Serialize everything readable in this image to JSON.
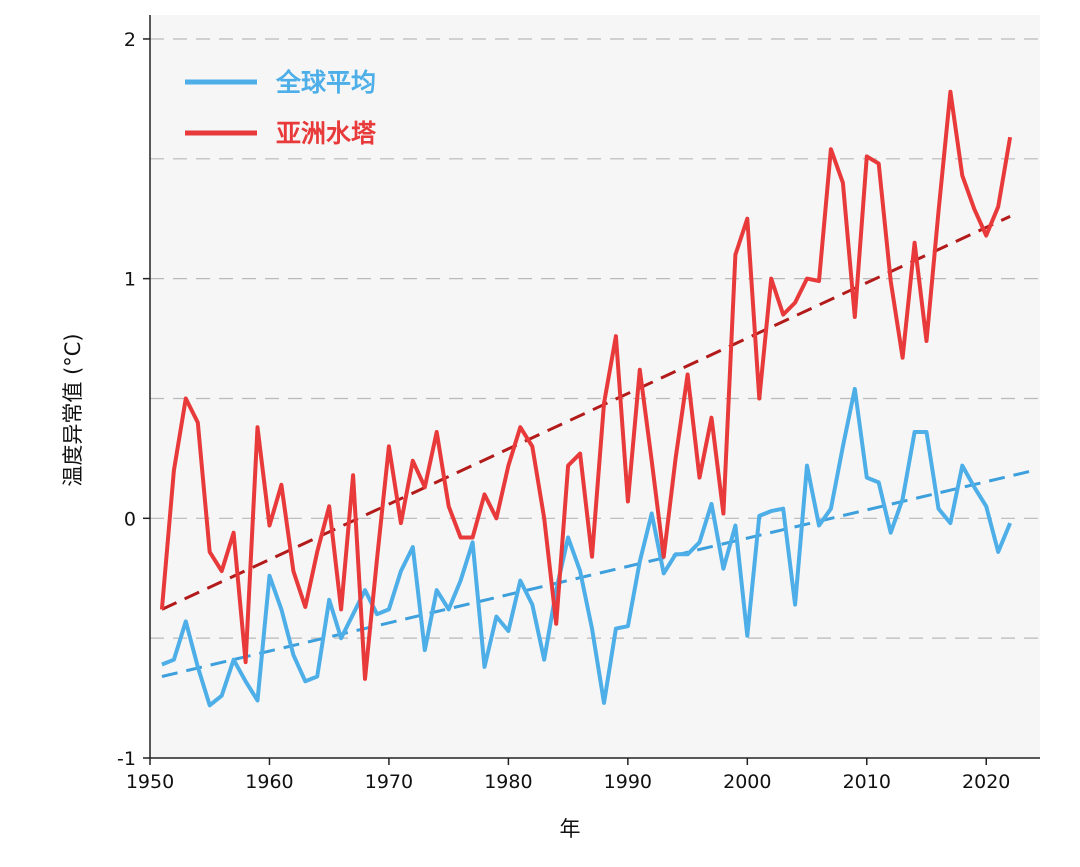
{
  "chart_data": {
    "type": "line",
    "xlabel": "年",
    "ylabel": "温度异常值 (°C)",
    "xlim": [
      1950,
      2024.5
    ],
    "ylim": [
      -1,
      2.1
    ],
    "x_ticks": [
      1950,
      1960,
      1970,
      1980,
      1990,
      2000,
      2010,
      2020
    ],
    "y_ticks": [
      -1,
      0,
      1,
      2
    ],
    "grid": "horizontal dashed, every 0.5",
    "legend_position": "top-left",
    "series": [
      {
        "name": "全球平均",
        "color": "#4daee8",
        "x": [
          1951,
          1952,
          1953,
          1954,
          1955,
          1956,
          1957,
          1958,
          1959,
          1960,
          1961,
          1962,
          1963,
          1964,
          1965,
          1966,
          1967,
          1968,
          1969,
          1970,
          1971,
          1972,
          1973,
          1974,
          1975,
          1976,
          1977,
          1978,
          1979,
          1980,
          1981,
          1982,
          1983,
          1984,
          1985,
          1986,
          1987,
          1988,
          1989,
          1990,
          1991,
          1992,
          1993,
          1994,
          1995,
          1996,
          1997,
          1998,
          1999,
          2000,
          2001,
          2002,
          2003,
          2004,
          2005,
          2006,
          2007,
          2008,
          2009,
          2010,
          2011,
          2012,
          2013,
          2014,
          2015,
          2016,
          2017,
          2018,
          2019,
          2020,
          2021,
          2022
        ],
        "values": [
          -0.61,
          -0.59,
          -0.43,
          -0.62,
          -0.78,
          -0.74,
          -0.59,
          -0.68,
          -0.76,
          -0.24,
          -0.38,
          -0.57,
          -0.68,
          -0.66,
          -0.34,
          -0.5,
          -0.4,
          -0.3,
          -0.4,
          -0.38,
          -0.22,
          -0.12,
          -0.55,
          -0.3,
          -0.38,
          -0.26,
          -0.1,
          -0.62,
          -0.41,
          -0.47,
          -0.26,
          -0.36,
          -0.59,
          -0.3,
          -0.08,
          -0.22,
          -0.46,
          -0.77,
          -0.46,
          -0.45,
          -0.18,
          0.02,
          -0.23,
          -0.15,
          -0.15,
          -0.1,
          0.06,
          -0.21,
          -0.03,
          -0.49,
          0.01,
          0.03,
          0.04,
          -0.36,
          0.22,
          -0.03,
          0.04,
          0.3,
          0.54,
          0.17,
          0.15,
          -0.06,
          0.08,
          0.36,
          0.36,
          0.04,
          -0.02,
          0.22,
          0.13,
          0.05,
          -0.14,
          -0.02
        ]
      },
      {
        "name": "亚洲水塔",
        "color": "#e83a3a",
        "x": [
          1951,
          1952,
          1953,
          1954,
          1955,
          1956,
          1957,
          1958,
          1959,
          1960,
          1961,
          1962,
          1963,
          1964,
          1965,
          1966,
          1967,
          1968,
          1969,
          1970,
          1971,
          1972,
          1973,
          1974,
          1975,
          1976,
          1977,
          1978,
          1979,
          1980,
          1981,
          1982,
          1983,
          1984,
          1985,
          1986,
          1987,
          1988,
          1989,
          1990,
          1991,
          1992,
          1993,
          1994,
          1995,
          1996,
          1997,
          1998,
          1999,
          2000,
          2001,
          2002,
          2003,
          2004,
          2005,
          2006,
          2007,
          2008,
          2009,
          2010,
          2011,
          2012,
          2013,
          2014,
          2015,
          2016,
          2017,
          2018,
          2019,
          2020,
          2021,
          2022
        ],
        "values": [
          -0.38,
          0.2,
          0.5,
          0.4,
          -0.14,
          -0.22,
          -0.06,
          -0.6,
          0.38,
          -0.03,
          0.14,
          -0.22,
          -0.37,
          -0.14,
          0.05,
          -0.38,
          0.18,
          -0.67,
          -0.17,
          0.3,
          -0.02,
          0.24,
          0.13,
          0.36,
          0.05,
          -0.08,
          -0.08,
          0.1,
          0.0,
          0.22,
          0.38,
          0.3,
          0.0,
          -0.44,
          0.22,
          0.27,
          -0.16,
          0.48,
          0.76,
          0.07,
          0.62,
          0.24,
          -0.16,
          0.25,
          0.6,
          0.17,
          0.42,
          0.02,
          1.1,
          1.25,
          0.5,
          1.0,
          0.85,
          0.9,
          1.0,
          0.99,
          1.54,
          1.4,
          0.84,
          1.51,
          1.48,
          0.99,
          0.67,
          1.15,
          0.74,
          1.28,
          1.78,
          1.43,
          1.29,
          1.18,
          1.3,
          1.59
        ]
      }
    ],
    "trendlines": [
      {
        "series": "全球平均",
        "color": "#3d9fdc",
        "x": [
          1951,
          2024
        ],
        "values": [
          -0.66,
          0.2
        ]
      },
      {
        "series": "亚洲水塔",
        "color": "#b31b1b",
        "x": [
          1951,
          2022
        ],
        "values": [
          -0.38,
          1.26
        ]
      }
    ]
  }
}
